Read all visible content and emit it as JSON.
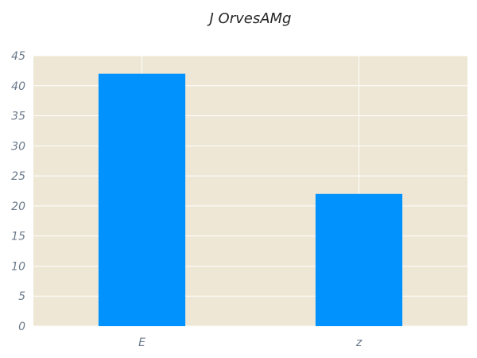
{
  "chart_data": {
    "type": "bar",
    "title": "J OrvesAMg",
    "xlabel": "",
    "ylabel": "",
    "categories": [
      "E",
      "z"
    ],
    "values": [
      42,
      22
    ],
    "ylim": [
      0,
      45
    ],
    "yticks": [
      0,
      5,
      10,
      15,
      20,
      25,
      30,
      35,
      40,
      45
    ],
    "grid": true,
    "legend": "none"
  },
  "colors": {
    "bar": "#0292fe",
    "plot_background": "#eee7d5",
    "grid": "#ffffff",
    "tick_text": "#6b7a8a",
    "title_text": "#262626"
  }
}
